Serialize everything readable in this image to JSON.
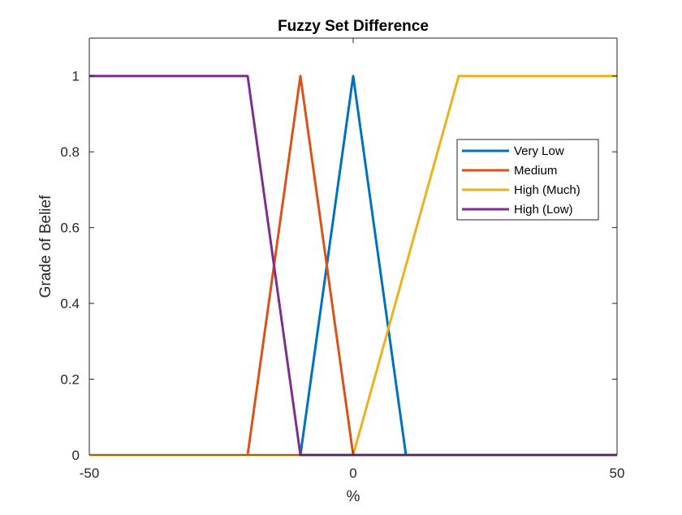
{
  "chart_data": {
    "type": "line",
    "title": "Fuzzy Set Difference",
    "xlabel": "%",
    "ylabel": "Grade of Belief",
    "xlim": [
      -50,
      50
    ],
    "ylim": [
      0,
      1.1
    ],
    "xticks": [
      -50,
      0,
      50
    ],
    "xtick_labels": [
      "-50",
      "0",
      "50"
    ],
    "yticks": [
      0,
      0.2,
      0.4,
      0.6,
      0.8,
      1
    ],
    "ytick_labels": [
      "0",
      "0.2",
      "0.4",
      "0.6",
      "0.8",
      "1"
    ],
    "grid": false,
    "legend_position": "top-right",
    "series": [
      {
        "name": "Very Low",
        "color": "#0072BD",
        "x": [
          -50,
          -10,
          0,
          10,
          50
        ],
        "y": [
          0,
          0,
          1,
          0,
          0
        ]
      },
      {
        "name": "Medium",
        "color": "#D95319",
        "x": [
          -50,
          -20,
          -10,
          0,
          50
        ],
        "y": [
          0,
          0,
          1,
          0,
          0
        ]
      },
      {
        "name": "High (Much)",
        "color": "#EDB120",
        "x": [
          -50,
          0,
          20,
          50
        ],
        "y": [
          0,
          0,
          1,
          1
        ]
      },
      {
        "name": "High (Low)",
        "color": "#7E2F8E",
        "x": [
          -50,
          -20,
          -10,
          50
        ],
        "y": [
          1,
          1,
          0,
          0
        ]
      }
    ]
  }
}
